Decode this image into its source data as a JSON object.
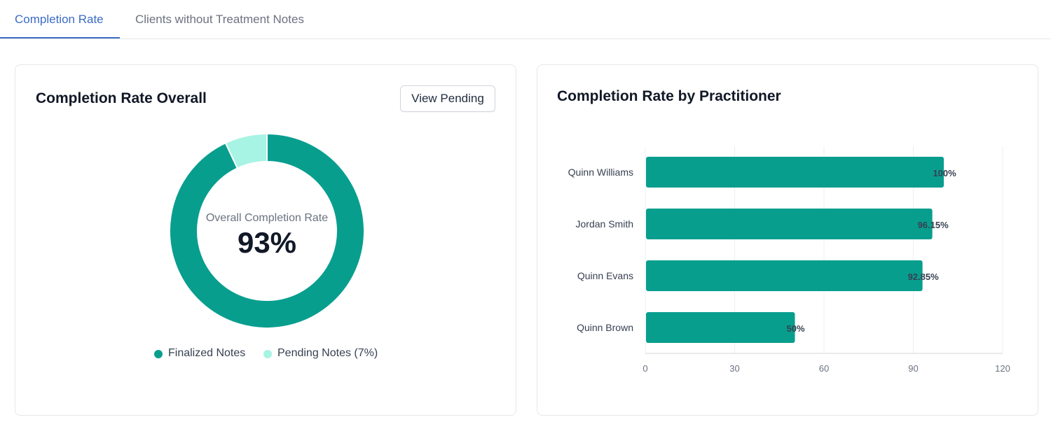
{
  "tabs": [
    {
      "label": "Completion Rate",
      "active": true
    },
    {
      "label": "Clients without Treatment Notes",
      "active": false
    }
  ],
  "overall": {
    "title": "Completion Rate Overall",
    "button_label": "View Pending",
    "center_label": "Overall Completion Rate",
    "center_value": "93%",
    "legend": [
      {
        "label": "Finalized Notes",
        "color": "#089e8e"
      },
      {
        "label": "Pending Notes (7%)",
        "color": "#a7f3e4"
      }
    ],
    "chart_data": {
      "type": "pie",
      "categories": [
        "Finalized Notes",
        "Pending Notes"
      ],
      "values": [
        93,
        7
      ],
      "colors": [
        "#089e8e",
        "#a7f3e4"
      ]
    }
  },
  "by_practitioner": {
    "title": "Completion Rate by Practitioner",
    "chart_data": {
      "type": "bar",
      "orientation": "horizontal",
      "categories": [
        "Quinn Williams",
        "Jordan Smith",
        "Quinn Evans",
        "Quinn Brown"
      ],
      "values": [
        100,
        96.15,
        92.85,
        50
      ],
      "data_labels": [
        "100%",
        "96.15%",
        "92.85%",
        "50%"
      ],
      "xlim": [
        0,
        120
      ],
      "xticks": [
        "0",
        "30",
        "60",
        "90",
        "120"
      ],
      "grid": true,
      "bar_color": "#089e8e"
    }
  }
}
